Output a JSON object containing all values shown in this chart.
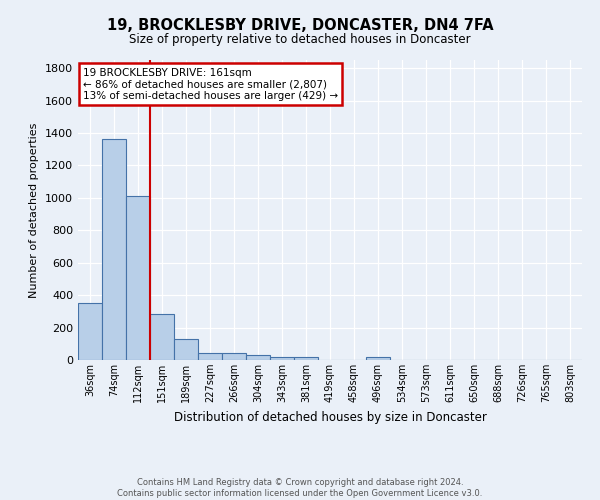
{
  "title": "19, BROCKLESBY DRIVE, DONCASTER, DN4 7FA",
  "subtitle": "Size of property relative to detached houses in Doncaster",
  "xlabel": "Distribution of detached houses by size in Doncaster",
  "ylabel": "Number of detached properties",
  "footer_line1": "Contains HM Land Registry data © Crown copyright and database right 2024.",
  "footer_line2": "Contains public sector information licensed under the Open Government Licence v3.0.",
  "bin_labels": [
    "36sqm",
    "74sqm",
    "112sqm",
    "151sqm",
    "189sqm",
    "227sqm",
    "266sqm",
    "304sqm",
    "343sqm",
    "381sqm",
    "419sqm",
    "458sqm",
    "496sqm",
    "534sqm",
    "573sqm",
    "611sqm",
    "650sqm",
    "688sqm",
    "726sqm",
    "765sqm",
    "803sqm"
  ],
  "bar_values": [
    350,
    1360,
    1010,
    285,
    130,
    43,
    43,
    30,
    18,
    18,
    0,
    0,
    18,
    0,
    0,
    0,
    0,
    0,
    0,
    0,
    0
  ],
  "bar_color": "#b8cfe8",
  "bar_edge_color": "#4472a8",
  "background_color": "#eaf0f8",
  "grid_color": "#ffffff",
  "red_line_x": 3,
  "annotation_line1": "19 BROCKLESBY DRIVE: 161sqm",
  "annotation_line2": "← 86% of detached houses are smaller (2,807)",
  "annotation_line3": "13% of semi-detached houses are larger (429) →",
  "annotation_box_color": "#ffffff",
  "annotation_edge_color": "#cc0000",
  "red_line_color": "#cc0000",
  "ylim": [
    0,
    1850
  ],
  "yticks": [
    0,
    200,
    400,
    600,
    800,
    1000,
    1200,
    1400,
    1600,
    1800
  ]
}
